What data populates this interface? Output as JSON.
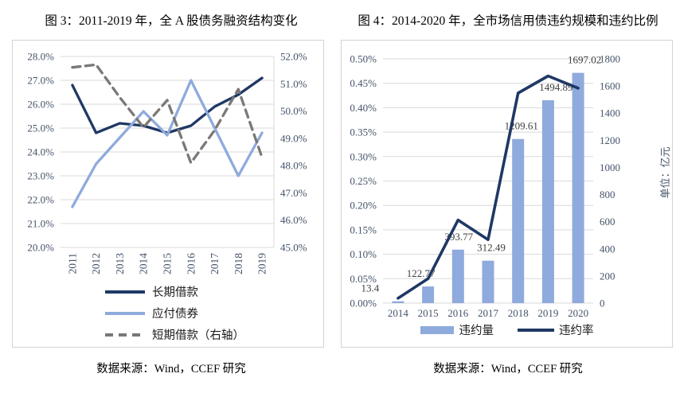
{
  "fig3": {
    "title": "图 3：2011-2019 年，全 A 股债务融资结构变化",
    "source": "数据来源：Wind，CCEF 研究",
    "left_ticks": [
      "28.0%",
      "27.0%",
      "26.0%",
      "25.0%",
      "24.0%",
      "23.0%",
      "22.0%",
      "21.0%",
      "20.0%"
    ],
    "right_ticks": [
      "52.0%",
      "51.0%",
      "50.0%",
      "49.0%",
      "48.0%",
      "47.0%",
      "46.0%",
      "45.0%"
    ]
  },
  "fig4": {
    "title": "图 4：2014-2020 年，全市场信用债违约规模和违约比例",
    "source": "数据来源：Wind，CCEF 研究",
    "left_ticks": [
      "0.50%",
      "0.45%",
      "0.40%",
      "0.35%",
      "0.30%",
      "0.25%",
      "0.20%",
      "0.15%",
      "0.10%",
      "0.05%",
      "0.00%"
    ],
    "right_ticks": [
      "1800",
      "1600",
      "1400",
      "1200",
      "1000",
      "800",
      "600",
      "400",
      "200",
      "0"
    ],
    "right_axis_title": "单位：亿元",
    "bar_labels": [
      "13.4",
      "122.77",
      "393.77",
      "312.49",
      "1209.61",
      "1494.89",
      "1697.02"
    ]
  },
  "colors": {
    "navy": "#1f3864",
    "light_blue": "#8faadc",
    "gray_dashed": "#7b7875",
    "gridline": "#d9d9d9",
    "tick_text": "#44546a",
    "data_label": "#3d3d3d"
  },
  "chart_data": [
    {
      "type": "line",
      "title": "图 3：2011-2019 年，全 A 股债务融资结构变化",
      "categories": [
        "2011",
        "2012",
        "2013",
        "2014",
        "2015",
        "2016",
        "2017",
        "2018",
        "2019"
      ],
      "series": [
        {
          "name": "长期借款",
          "axis": "left",
          "line_style": "solid",
          "color": "#1f3864",
          "values": [
            26.8,
            24.8,
            25.2,
            25.1,
            24.8,
            25.1,
            25.9,
            26.4,
            27.1
          ]
        },
        {
          "name": "应付债券",
          "axis": "left",
          "line_style": "solid",
          "color": "#8faadc",
          "values": [
            21.7,
            23.5,
            24.6,
            25.7,
            24.7,
            27.0,
            25.0,
            23.0,
            24.8
          ]
        },
        {
          "name": "短期借款（右轴）",
          "axis": "right",
          "line_style": "dashed",
          "color": "#7b7875",
          "values": [
            51.6,
            51.7,
            50.5,
            49.4,
            50.4,
            48.1,
            49.3,
            50.8,
            48.3
          ]
        }
      ],
      "left_axis": {
        "min": 20,
        "max": 28,
        "step": 1,
        "format": "percent"
      },
      "right_axis": {
        "min": 45,
        "max": 52,
        "step": 1,
        "format": "percent"
      },
      "grid": true,
      "legend_position": "bottom-stacked"
    },
    {
      "type": "bar+line",
      "title": "图 4：2014-2020 年，全市场信用债违约规模和违约比例",
      "categories": [
        "2014",
        "2015",
        "2016",
        "2017",
        "2018",
        "2019",
        "2020"
      ],
      "series": [
        {
          "name": "违约量",
          "chart": "bar",
          "axis": "right",
          "color": "#8faadc",
          "values": [
            13.4,
            122.77,
            393.77,
            312.49,
            1209.61,
            1494.89,
            1697.02
          ]
        },
        {
          "name": "违约率",
          "chart": "line",
          "axis": "left",
          "color": "#1f3864",
          "values": [
            0.01,
            0.05,
            0.17,
            0.13,
            0.43,
            0.465,
            0.44
          ]
        }
      ],
      "left_axis": {
        "min": 0,
        "max": 0.5,
        "step": 0.05,
        "format": "percent"
      },
      "right_axis": {
        "min": 0,
        "max": 1800,
        "step": 200,
        "title": "单位：亿元"
      },
      "grid": true,
      "legend_position": "bottom-horizontal"
    }
  ]
}
